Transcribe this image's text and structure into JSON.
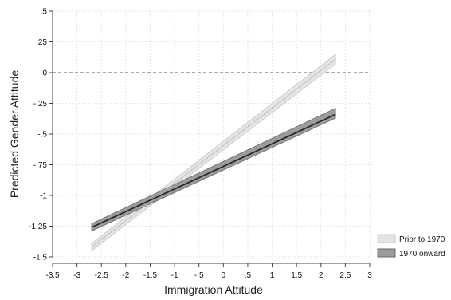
{
  "chart_data": {
    "type": "line",
    "title": "",
    "xlabel": "Immigration Attitude",
    "ylabel": "Predicted Gender Attitude",
    "xlim": [
      -3.5,
      3
    ],
    "ylim": [
      -1.5,
      0.5
    ],
    "xticks": [
      -3.5,
      -3,
      -2.5,
      -2,
      -1.5,
      -1,
      -0.5,
      0,
      0.5,
      1,
      1.5,
      2,
      2.5,
      3
    ],
    "xtick_labels": [
      "-3.5",
      "-3",
      "-2.5",
      "-2",
      "-1.5",
      "-1",
      "-.5",
      "0",
      ".5",
      "1",
      "1.5",
      "2",
      "2.5",
      "3"
    ],
    "yticks": [
      0.5,
      0.25,
      0,
      -0.25,
      -0.5,
      -0.75,
      -1,
      -1.25,
      -1.5
    ],
    "ytick_labels": [
      ".5",
      ".25",
      "0",
      "-.25",
      "-.5",
      "-.75",
      "-1",
      "-1.25",
      "-1.5"
    ],
    "grid": true,
    "reference_line": {
      "y": 0,
      "style": "dashed"
    },
    "legend_position": "bottom-right",
    "series": [
      {
        "name": "Prior to 1970",
        "x": [
          -2.7,
          2.3
        ],
        "y": [
          -1.42,
          0.11
        ],
        "ci_lower": [
          -1.45,
          0.07
        ],
        "ci_upper": [
          -1.39,
          0.15
        ],
        "line_color": "#bdbdbd",
        "band_color": "#e4e4e4",
        "band_edge_color": "#c8c8c8"
      },
      {
        "name": "1970 onward",
        "x": [
          -2.7,
          2.3
        ],
        "y": [
          -1.26,
          -0.34
        ],
        "ci_lower": [
          -1.29,
          -0.37
        ],
        "ci_upper": [
          -1.23,
          -0.29
        ],
        "line_color": "#2a2a2a",
        "band_color": "#9c9c9c",
        "band_edge_color": "#6a6a6a"
      }
    ]
  }
}
